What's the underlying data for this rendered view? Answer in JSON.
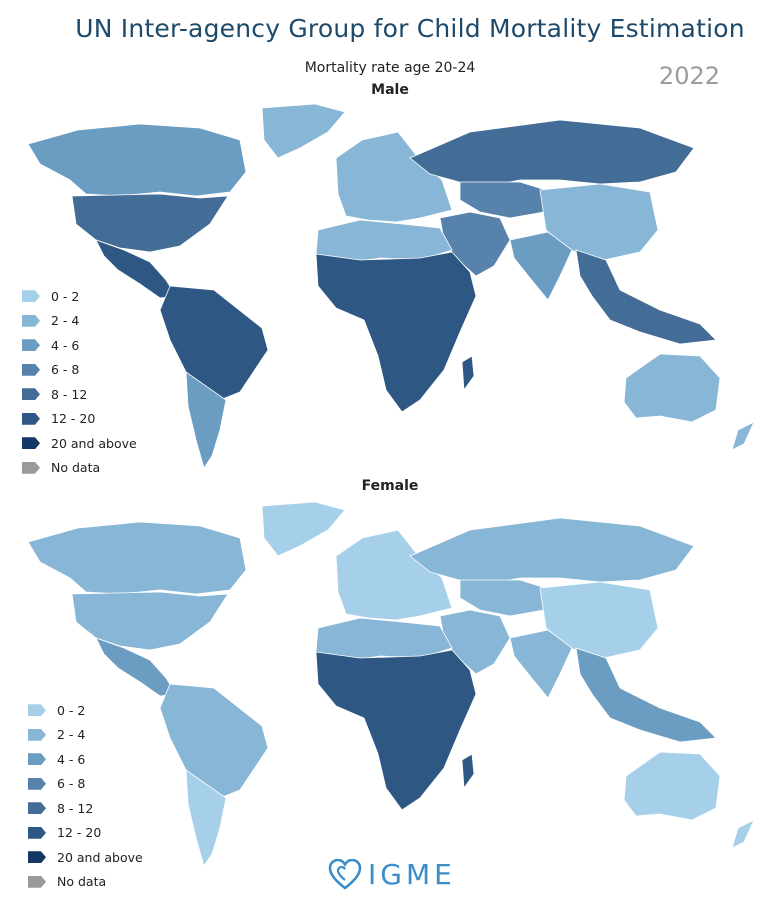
{
  "header": {
    "title": "UN Inter-agency Group for Child Mortality Estimation",
    "subtitle": "Mortality rate age 20-24",
    "year": "2022"
  },
  "panels": {
    "male_label": "Male",
    "female_label": "Female"
  },
  "legend": [
    {
      "label": "0 - 2",
      "color": "#a6d0ea"
    },
    {
      "label": "2 - 4",
      "color": "#87b6d6"
    },
    {
      "label": "4 - 6",
      "color": "#6b9cc2"
    },
    {
      "label": "6 - 8",
      "color": "#5682ac"
    },
    {
      "label": "8 - 12",
      "color": "#436d96"
    },
    {
      "label": "12 - 20",
      "color": "#2f5784"
    },
    {
      "label": "20 and above",
      "color": "#143765"
    },
    {
      "label": "No data",
      "color": "#9a9a9a"
    }
  ],
  "map_regions": {
    "male": {
      "north_america": "#436d96",
      "canada": "#6b9cc2",
      "greenland": "#87b6d6",
      "central_america": "#2f5784",
      "south_america": "#2f5784",
      "southern_south_america": "#6b9cc2",
      "europe": "#87b6d6",
      "russia": "#436d96",
      "north_africa": "#87b6d6",
      "africa": "#2f5784",
      "middle_east": "#5682ac",
      "central_asia": "#5682ac",
      "china": "#87b6d6",
      "south_asia": "#6b9cc2",
      "southeast_asia": "#436d96",
      "australia": "#87b6d6"
    },
    "female": {
      "north_america": "#87b6d6",
      "canada": "#87b6d6",
      "greenland": "#a6d0ea",
      "central_america": "#6b9cc2",
      "south_america": "#87b6d6",
      "southern_south_america": "#a6d0ea",
      "europe": "#a6d0ea",
      "russia": "#87b6d6",
      "north_africa": "#87b6d6",
      "africa": "#2f5784",
      "middle_east": "#87b6d6",
      "central_asia": "#87b6d6",
      "china": "#a6d0ea",
      "south_asia": "#87b6d6",
      "southeast_asia": "#6b9cc2",
      "australia": "#a6d0ea"
    }
  },
  "logo": {
    "text": "IGME",
    "icon": "heart-icon",
    "color": "#3a8dc8"
  }
}
